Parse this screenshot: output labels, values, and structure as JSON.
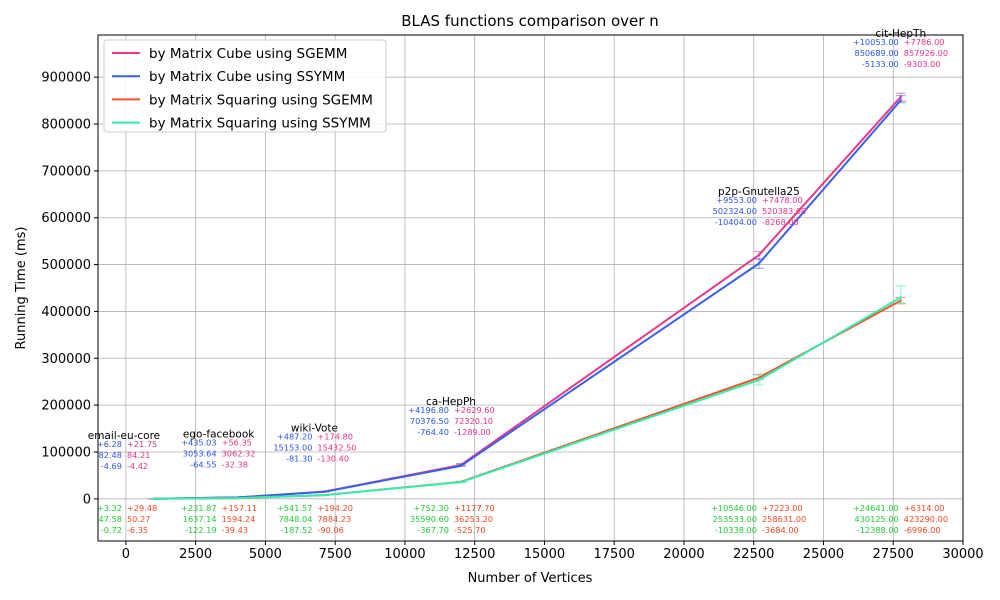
{
  "chart_data": {
    "type": "line",
    "title": "BLAS functions comparison over n",
    "xlabel": "Number of Vertices",
    "ylabel": "Running Time (ms)",
    "xlim": [
      -1000,
      30000
    ],
    "ylim": [
      -90000,
      990000
    ],
    "x_ticks": [
      0,
      2500,
      5000,
      7500,
      10000,
      12500,
      15000,
      17500,
      20000,
      22500,
      25000,
      27500,
      30000
    ],
    "y_ticks": [
      0,
      100000,
      200000,
      300000,
      400000,
      500000,
      600000,
      700000,
      800000,
      900000
    ],
    "x_tick_labels": [
      "0",
      "2500",
      "5000",
      "7500",
      "10000",
      "12500",
      "15000",
      "17500",
      "20000",
      "22500",
      "25000",
      "27500",
      "30000"
    ],
    "y_tick_labels": [
      "0",
      "100000",
      "200000",
      "300000",
      "400000",
      "500000",
      "600000",
      "700000",
      "800000",
      "900000"
    ],
    "grid": true,
    "legend_position": "top-left",
    "datasets": [
      {
        "name": "email-eu-core",
        "vertices": 1005
      },
      {
        "name": "ego-facebook",
        "vertices": 4039
      },
      {
        "name": "wiki-Vote",
        "vertices": 7115
      },
      {
        "name": "ca-HepPh",
        "vertices": 12008
      },
      {
        "name": "p2p-Gnutella25",
        "vertices": 22687
      },
      {
        "name": "cit-HepTh",
        "vertices": 27770
      }
    ],
    "series": [
      {
        "name": "by Matrix Cube using SGEMM",
        "color": "#e8398a",
        "x": [
          1005,
          4039,
          7115,
          12008,
          22687,
          27770
        ],
        "values": [
          84.21,
          3062.32,
          15432.5,
          72320.1,
          520383.0,
          857926.0
        ],
        "err_plus": [
          21.75,
          56.35,
          174.8,
          2629.6,
          7478.0,
          7786.0
        ],
        "err_minus": [
          4.42,
          32.38,
          130.4,
          1289.0,
          8268.0,
          9303.0
        ]
      },
      {
        "name": "by Matrix Cube using SSYMM",
        "color": "#3a62e6",
        "x": [
          1005,
          4039,
          7115,
          12008,
          22687,
          27770
        ],
        "values": [
          82.48,
          3053.64,
          15153.0,
          70376.5,
          502324.0,
          850689.0
        ],
        "err_plus": [
          6.28,
          435.03,
          487.2,
          4196.8,
          9553.0,
          10053.0
        ],
        "err_minus": [
          4.69,
          64.55,
          81.3,
          764.4,
          10404.0,
          5133.0
        ]
      },
      {
        "name": "by Matrix Squaring using SGEMM",
        "color": "#f05428",
        "x": [
          1005,
          4039,
          7115,
          12008,
          22687,
          27770
        ],
        "values": [
          50.27,
          1594.24,
          7884.23,
          36253.2,
          258631.0,
          423290.0
        ],
        "err_plus": [
          29.48,
          157.11,
          194.2,
          1177.7,
          7223.0,
          6314.0
        ],
        "err_minus": [
          6.35,
          39.43,
          90.06,
          525.7,
          3684.0,
          6996.0
        ]
      },
      {
        "name": "by Matrix Squaring using SSYMM",
        "color": "#34f0b0",
        "x": [
          1005,
          4039,
          7115,
          12008,
          22687,
          27770
        ],
        "values": [
          47.58,
          1637.14,
          7848.04,
          35590.6,
          253533.0,
          430125.0
        ],
        "err_plus": [
          3.32,
          231.87,
          541.57,
          752.3,
          10546.0,
          24641.0
        ],
        "err_minus": [
          0.72,
          122.19,
          187.52,
          367.7,
          10338.0,
          12388.0
        ]
      }
    ],
    "annotations": [
      {
        "dataset": 0,
        "group": "cube",
        "lines": [
          {
            "text": "+6.28",
            "color": "#2a55e8"
          },
          {
            "text": "82.48",
            "color": "#2a55e8"
          },
          {
            "text": "-4.69",
            "color": "#2a55e8"
          },
          {
            "text": "+21.75",
            "color": "#e8308a"
          },
          {
            "text": "84.21",
            "color": "#e8308a"
          },
          {
            "text": "-4.42",
            "color": "#e8308a"
          }
        ]
      },
      {
        "dataset": 0,
        "group": "square",
        "lines": [
          {
            "text": "+3.32",
            "color": "#22cc33"
          },
          {
            "text": "47.58",
            "color": "#22cc33"
          },
          {
            "text": "-0.72",
            "color": "#22cc33"
          },
          {
            "text": "+29.48",
            "color": "#f04a20"
          },
          {
            "text": "50.27",
            "color": "#f04a20"
          },
          {
            "text": "-6.35",
            "color": "#f04a20"
          }
        ]
      },
      {
        "dataset": 1,
        "group": "cube",
        "lines": [
          {
            "text": "+435.03",
            "color": "#2a55e8"
          },
          {
            "text": "3053.64",
            "color": "#2a55e8"
          },
          {
            "text": "-64.55",
            "color": "#2a55e8"
          },
          {
            "text": "+56.35",
            "color": "#e8308a"
          },
          {
            "text": "3062.32",
            "color": "#e8308a"
          },
          {
            "text": "-32.38",
            "color": "#e8308a"
          }
        ]
      },
      {
        "dataset": 1,
        "group": "square",
        "lines": [
          {
            "text": "+231.87",
            "color": "#22cc33"
          },
          {
            "text": "1637.14",
            "color": "#22cc33"
          },
          {
            "text": "-122.19",
            "color": "#22cc33"
          },
          {
            "text": "+157.11",
            "color": "#f04a20"
          },
          {
            "text": "1594.24",
            "color": "#f04a20"
          },
          {
            "text": "-39.43",
            "color": "#f04a20"
          }
        ]
      },
      {
        "dataset": 2,
        "group": "cube",
        "lines": [
          {
            "text": "+487.20",
            "color": "#2a55e8"
          },
          {
            "text": "15153.00",
            "color": "#2a55e8"
          },
          {
            "text": "-81.30",
            "color": "#2a55e8"
          },
          {
            "text": "+174.80",
            "color": "#e8308a"
          },
          {
            "text": "15432.50",
            "color": "#e8308a"
          },
          {
            "text": "-130.40",
            "color": "#e8308a"
          }
        ]
      },
      {
        "dataset": 2,
        "group": "square",
        "lines": [
          {
            "text": "+541.57",
            "color": "#22cc33"
          },
          {
            "text": "7848.04",
            "color": "#22cc33"
          },
          {
            "text": "-187.52",
            "color": "#22cc33"
          },
          {
            "text": "+194.20",
            "color": "#f04a20"
          },
          {
            "text": "7884.23",
            "color": "#f04a20"
          },
          {
            "text": "-90.06",
            "color": "#f04a20"
          }
        ]
      },
      {
        "dataset": 3,
        "group": "cube",
        "lines": [
          {
            "text": "+4196.80",
            "color": "#2a55e8"
          },
          {
            "text": "70376.50",
            "color": "#2a55e8"
          },
          {
            "text": "-764.40",
            "color": "#2a55e8"
          },
          {
            "text": "+2629.60",
            "color": "#e8308a"
          },
          {
            "text": "72320.10",
            "color": "#e8308a"
          },
          {
            "text": "-1289.00",
            "color": "#e8308a"
          }
        ]
      },
      {
        "dataset": 3,
        "group": "square",
        "lines": [
          {
            "text": "+752.30",
            "color": "#22cc33"
          },
          {
            "text": "35590.60",
            "color": "#22cc33"
          },
          {
            "text": "-367.70",
            "color": "#22cc33"
          },
          {
            "text": "+1177.70",
            "color": "#f04a20"
          },
          {
            "text": "36253.20",
            "color": "#f04a20"
          },
          {
            "text": "-525.70",
            "color": "#f04a20"
          }
        ]
      },
      {
        "dataset": 4,
        "group": "cube",
        "lines": [
          {
            "text": "+9553.00",
            "color": "#2a55e8"
          },
          {
            "text": "502324.00",
            "color": "#2a55e8"
          },
          {
            "text": "-10404.00",
            "color": "#2a55e8"
          },
          {
            "text": "+7478.00",
            "color": "#e8308a"
          },
          {
            "text": "520383.00",
            "color": "#e8308a"
          },
          {
            "text": "-8268.00",
            "color": "#e8308a"
          }
        ]
      },
      {
        "dataset": 4,
        "group": "square",
        "lines": [
          {
            "text": "+10546.00",
            "color": "#22cc33"
          },
          {
            "text": "253533.00",
            "color": "#22cc33"
          },
          {
            "text": "-10338.00",
            "color": "#22cc33"
          },
          {
            "text": "+7223.00",
            "color": "#f04a20"
          },
          {
            "text": "258631.00",
            "color": "#f04a20"
          },
          {
            "text": "-3684.00",
            "color": "#f04a20"
          }
        ]
      },
      {
        "dataset": 5,
        "group": "cube",
        "lines": [
          {
            "text": "+10053.00",
            "color": "#2a55e8"
          },
          {
            "text": "850689.00",
            "color": "#2a55e8"
          },
          {
            "text": "-5133.00",
            "color": "#2a55e8"
          },
          {
            "text": "+7786.00",
            "color": "#e8308a"
          },
          {
            "text": "857926.00",
            "color": "#e8308a"
          },
          {
            "text": "-9303.00",
            "color": "#e8308a"
          }
        ]
      },
      {
        "dataset": 5,
        "group": "square",
        "lines": [
          {
            "text": "+24641.00",
            "color": "#22cc33"
          },
          {
            "text": "430125.00",
            "color": "#22cc33"
          },
          {
            "text": "-12388.00",
            "color": "#22cc33"
          },
          {
            "text": "+6314.00",
            "color": "#f04a20"
          },
          {
            "text": "423290.00",
            "color": "#f04a20"
          },
          {
            "text": "-6996.00",
            "color": "#f04a20"
          }
        ]
      }
    ]
  }
}
